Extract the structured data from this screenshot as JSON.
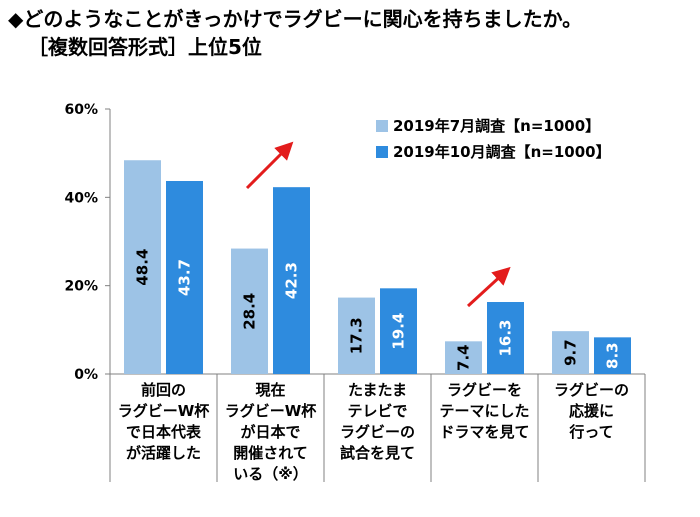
{
  "title": "◆どのようなことがきっかけでラグビーに関心を持ちましたか。",
  "subtitle": "［複数回答形式］上位5位",
  "chart_data": {
    "type": "bar",
    "title": "どのようなことがきっかけでラグビーに関心を持ちましたか。",
    "subtitle": "［複数回答形式］上位5位",
    "categories": [
      "前回の\nラグビーW杯\nで日本代表\nが活躍した",
      "現在\nラグビーW杯\nが日本で\n開催されて\nいる（※）",
      "たまたま\nテレビで\nラグビーの\n試合を見て",
      "ラグビーを\nテーマにした\nドラマを見て",
      "ラグビーの\n応援に\n行って"
    ],
    "series": [
      {
        "name": "2019年7月調査【n=1000】",
        "color": "#9dc3e6",
        "values": [
          48.4,
          28.4,
          17.3,
          7.4,
          9.7
        ]
      },
      {
        "name": "2019年10月調査【n=1000】",
        "color": "#2e8bde",
        "values": [
          43.7,
          42.3,
          19.4,
          16.3,
          8.3
        ]
      }
    ],
    "ylim": [
      0,
      60
    ],
    "yticks": [
      "0%",
      "20%",
      "40%",
      "60%"
    ],
    "ytick_values": [
      0,
      20,
      40,
      60
    ],
    "legend_position": "top-right",
    "annotations": [
      "red arrow up at category 2",
      "red arrow up at category 4"
    ]
  }
}
